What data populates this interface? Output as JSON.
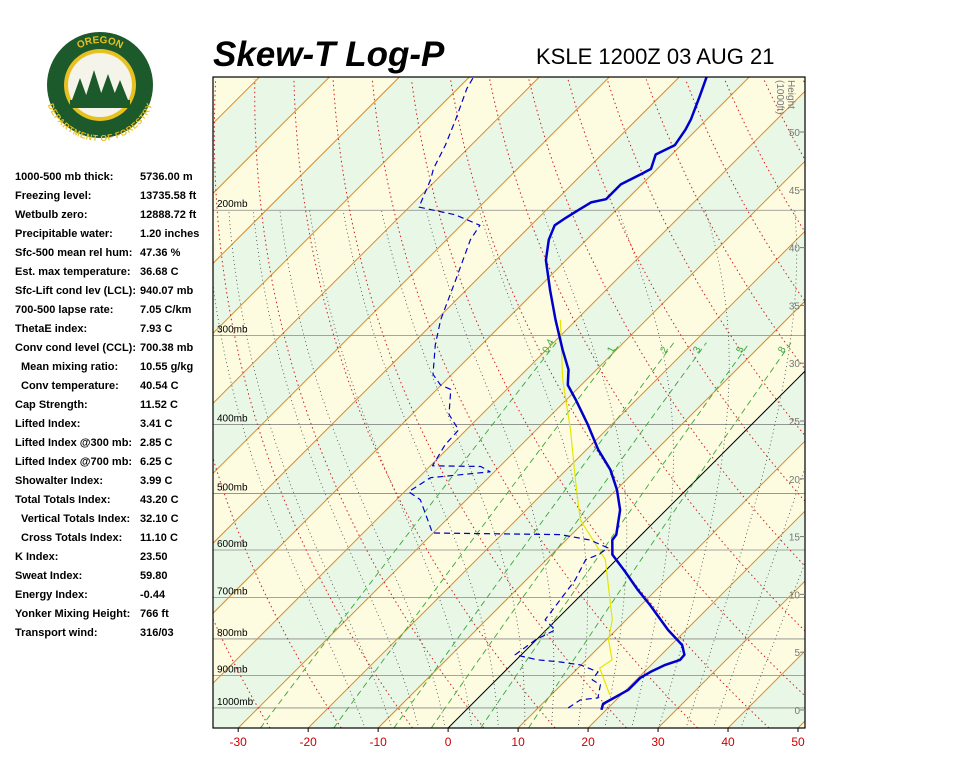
{
  "chart_data": {
    "type": "skew-t",
    "title": "Skew-T Log-P",
    "subtitle": "KSLE 1200Z 03 AUG 21",
    "xlim": [
      -33.6,
      51
    ],
    "xticks": [
      -30,
      -20,
      -10,
      0,
      10,
      20,
      30,
      40,
      50
    ],
    "ylim": [
      1067,
      130
    ],
    "log_y": true,
    "yticks": [
      {
        "value": 1000,
        "label": "1000mb"
      },
      {
        "value": 900,
        "label": "900mb"
      },
      {
        "value": 800,
        "label": "800mb"
      },
      {
        "value": 700,
        "label": "700mb"
      },
      {
        "value": 600,
        "label": "600mb"
      },
      {
        "value": 500,
        "label": "500mb"
      },
      {
        "value": 400,
        "label": "400mb"
      },
      {
        "value": 300,
        "label": "300mb"
      },
      {
        "value": 200,
        "label": "200mb"
      }
    ],
    "y2label": [
      "Height",
      "(1000ft)"
    ],
    "y2lim": [
      -1.56,
      54.76
    ],
    "y2ticks": [
      0,
      5,
      10,
      15,
      20,
      25,
      30,
      35,
      40,
      45,
      50
    ],
    "mixing_ratios": [
      0.4,
      1,
      2,
      3,
      5,
      8
    ],
    "series": [
      {
        "color": "#0000cc",
        "style": "solid",
        "pressure": [
          1006,
          987,
          968,
          943,
          907,
          890,
          870,
          856,
          842,
          816,
          777,
          717,
          683,
          644,
          609,
          581,
          571,
          527,
          494,
          463,
          434,
          400,
          369,
          352,
          335,
          314,
          285,
          259,
          235,
          220,
          210,
          205,
          200,
          195,
          193,
          184,
          178,
          175,
          167,
          162,
          154,
          149,
          138,
          130
        ],
        "values": [
          19.3,
          18.7,
          19.4,
          20.3,
          20.3,
          20.9,
          22.0,
          23.4,
          23.3,
          21.6,
          17.4,
          11.3,
          7.4,
          3.0,
          -1.3,
          -3.4,
          -3.6,
          -6.6,
          -9.9,
          -13.7,
          -18.3,
          -23.4,
          -28.7,
          -31.9,
          -34.0,
          -37.7,
          -43.0,
          -48.0,
          -52.9,
          -55.4,
          -56.6,
          -56.1,
          -55.4,
          -54.7,
          -53.0,
          -53.0,
          -51.6,
          -50.9,
          -52.3,
          -50.9,
          -51.6,
          -52.3,
          -54.4,
          -56.1
        ]
      },
      {
        "color": "#0000cc",
        "style": "dashed",
        "pressure": [
          1000,
          974,
          968,
          928,
          913,
          890,
          870,
          862,
          856,
          842,
          802,
          777,
          752,
          705,
          661,
          619,
          609,
          596,
          581,
          571,
          568,
          510,
          497,
          475,
          466,
          458,
          457,
          427,
          407,
          387,
          357,
          352,
          340,
          309,
          285,
          250,
          220,
          210,
          203,
          198,
          181,
          175,
          162,
          149,
          135,
          130
        ],
        "values": [
          14.3,
          14.9,
          17.1,
          15.6,
          13.7,
          13.4,
          9.9,
          6.6,
          3.1,
          -0.9,
          -0.1,
          1.3,
          -1.6,
          -2.3,
          -3.0,
          -4.4,
          -3.3,
          -2.9,
          -6.6,
          -11.6,
          -30.1,
          -36.6,
          -39.4,
          -38.3,
          -30.6,
          -32.7,
          -39.7,
          -40.9,
          -41.1,
          -44.7,
          -48.0,
          -50.1,
          -52.7,
          -56.6,
          -59.4,
          -63.0,
          -66.6,
          -67.3,
          -72.3,
          -78.6,
          -80.9,
          -82.0,
          -83.7,
          -85.9,
          -88.7,
          -89.4
        ]
      },
      {
        "color": "#e6e600",
        "style": "thin",
        "pressure": [
          959,
          879,
          856,
          802,
          752,
          619,
          544,
          478,
          407,
          346,
          285
        ],
        "values": [
          18.4,
          13.1,
          13.7,
          10.3,
          8.0,
          -1.6,
          -10.9,
          -17.3,
          -25.1,
          -33.4,
          -42.3
        ]
      }
    ]
  },
  "logo": {
    "top": "OREGON",
    "bottom": "DEPARTMENT OF FORESTRY"
  },
  "indices": {
    "rows": [
      {
        "label": "1000-500 mb thick:",
        "value": "5736.00 m"
      },
      {
        "label": "Freezing level:",
        "value": "13735.58 ft"
      },
      {
        "label": "Wetbulb zero:",
        "value": "12888.72 ft"
      },
      {
        "label": "Precipitable water:",
        "value": "1.20 inches"
      },
      {
        "label": "Sfc-500 mean rel hum:",
        "value": "47.36 %"
      },
      {
        "label": "Est. max temperature:",
        "value": "36.68 C"
      },
      {
        "label": "Sfc-Lift cond lev (LCL):",
        "value": "940.07 mb"
      },
      {
        "label": "700-500 lapse rate:",
        "value": "7.05 C/km"
      },
      {
        "label": "ThetaE index:",
        "value": "7.93 C"
      },
      {
        "label": "Conv cond level (CCL):",
        "value": "700.38 mb"
      },
      {
        "label": "Mean mixing ratio:",
        "value": "10.55 g/kg",
        "indent": true
      },
      {
        "label": "Conv temperature:",
        "value": "40.54 C",
        "indent": true
      },
      {
        "label": "Cap Strength:",
        "value": "11.52 C"
      },
      {
        "label": "Lifted Index:",
        "value": "3.41 C"
      },
      {
        "label": "Lifted Index @300 mb:",
        "value": "2.85 C"
      },
      {
        "label": "Lifted Index @700 mb:",
        "value": "6.25 C"
      },
      {
        "label": "Showalter Index:",
        "value": "3.99 C"
      },
      {
        "label": "Total Totals Index:",
        "value": "43.20 C"
      },
      {
        "label": "Vertical Totals Index:",
        "value": "32.10 C",
        "indent": true
      },
      {
        "label": "Cross Totals Index:",
        "value": "11.10 C",
        "indent": true
      },
      {
        "label": "K Index:",
        "value": "23.50"
      },
      {
        "label": "Sweat Index:",
        "value": "59.80"
      },
      {
        "label": "Energy Index:",
        "value": "-0.44"
      },
      {
        "label": "Yonker Mixing Height:",
        "value": "766 ft"
      },
      {
        "label": "Transport wind:",
        "value": "316/03"
      }
    ]
  }
}
